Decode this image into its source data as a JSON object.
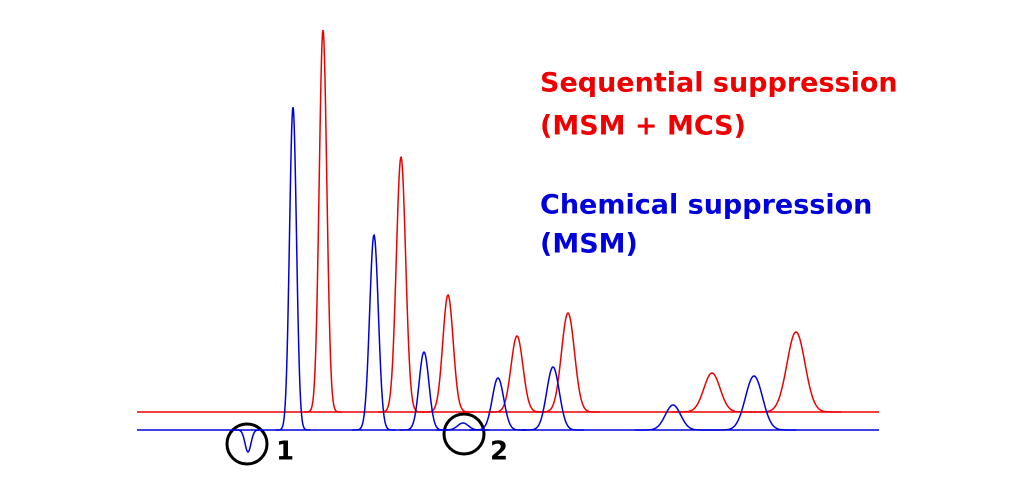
{
  "chart_data": {
    "type": "chromatogram",
    "xlim": [
      0,
      1024
    ],
    "ylim": [
      0,
      400
    ],
    "series": [
      {
        "name": "Sequential suppression",
        "subname": "(MSM + MCS)",
        "color": "#ee0000",
        "x": [
          323,
          401,
          448,
          517,
          568,
          712,
          796
        ],
        "values": [
          382,
          255,
          117,
          76,
          99,
          39,
          80
        ]
      },
      {
        "name": "Chemical suppression",
        "subname": "(MSM)",
        "color": "#0000dd",
        "x": [
          248,
          293,
          374,
          424,
          463,
          498,
          553,
          673,
          754
        ],
        "values": [
          -22,
          323,
          195,
          78,
          7,
          52,
          63,
          25,
          54
        ]
      }
    ],
    "annotations": [
      "1",
      "2"
    ]
  }
}
